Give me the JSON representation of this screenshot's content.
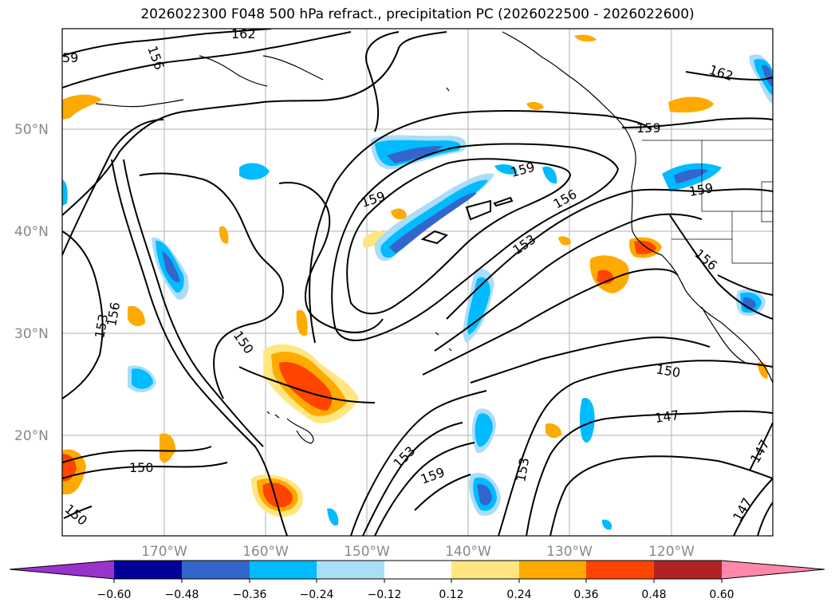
{
  "title": "2026022300 F048 500 hPa refract., precipitation PC (2026022500 - 2026022600)",
  "map": {
    "lat_labels": [
      "50°N",
      "40°N",
      "30°N",
      "20°N"
    ],
    "lon_labels": [
      "170°W",
      "160°W",
      "150°W",
      "140°W",
      "130°W",
      "120°W"
    ],
    "contour_labels": [
      {
        "text": "162"
      },
      {
        "text": "156"
      },
      {
        "text": "59"
      },
      {
        "text": "162"
      },
      {
        "text": "159"
      },
      {
        "text": "159"
      },
      {
        "text": "159"
      },
      {
        "text": "156"
      },
      {
        "text": "159"
      },
      {
        "text": "153"
      },
      {
        "text": "156"
      },
      {
        "text": "153"
      },
      {
        "text": "156"
      },
      {
        "text": "150"
      },
      {
        "text": "150"
      },
      {
        "text": "147"
      },
      {
        "text": "153"
      },
      {
        "text": "159"
      },
      {
        "text": "153"
      },
      {
        "text": "147"
      },
      {
        "text": "147"
      },
      {
        "text": "150"
      },
      {
        "text": "150"
      }
    ]
  },
  "colorbar": {
    "ticks": [
      "−0.60",
      "−0.48",
      "−0.36",
      "−0.24",
      "−0.12",
      "0.12",
      "0.24",
      "0.36",
      "0.48",
      "0.60"
    ],
    "colors": [
      "#9933cc",
      "#000099",
      "#3366cc",
      "#00bbff",
      "#aaddf8",
      "#ffffff",
      "#ffe680",
      "#ffaa00",
      "#ff4400",
      "#b22222",
      "#ff88aa"
    ]
  }
}
